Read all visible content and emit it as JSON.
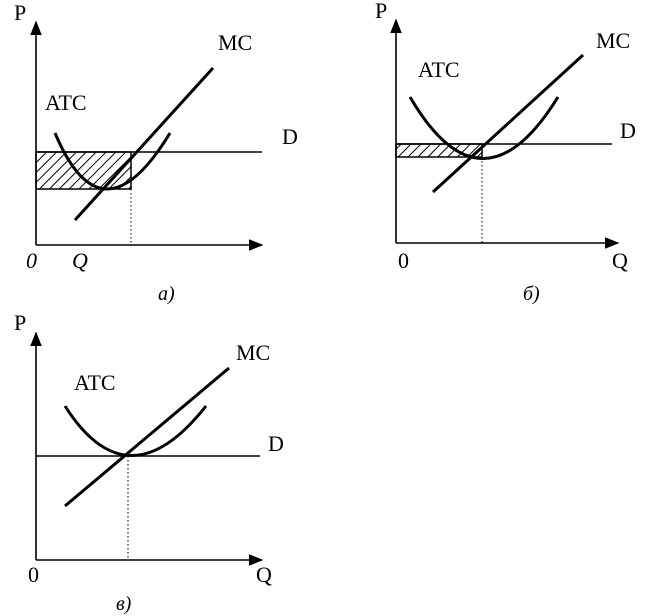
{
  "colors": {
    "ink": "#000000",
    "background": "#ffffff"
  },
  "panels": [
    {
      "id": "a",
      "caption": "а)",
      "y_axis_label": "P",
      "x_axis_label": "Q",
      "origin_label": "0",
      "curves": {
        "atc": "ATC",
        "mc": "MC",
        "demand": "D"
      },
      "shaded_region": "profit"
    },
    {
      "id": "b",
      "caption": "б)",
      "y_axis_label": "P",
      "x_axis_label": "Q",
      "origin_label": "0",
      "curves": {
        "atc": "ATC",
        "mc": "MC",
        "demand": "D"
      },
      "shaded_region": "loss"
    },
    {
      "id": "c",
      "caption": "в)",
      "y_axis_label": "P",
      "x_axis_label": "Q",
      "origin_label": "0",
      "curves": {
        "atc": "ATC",
        "mc": "MC",
        "demand": "D"
      },
      "shaded_region": "none"
    }
  ]
}
